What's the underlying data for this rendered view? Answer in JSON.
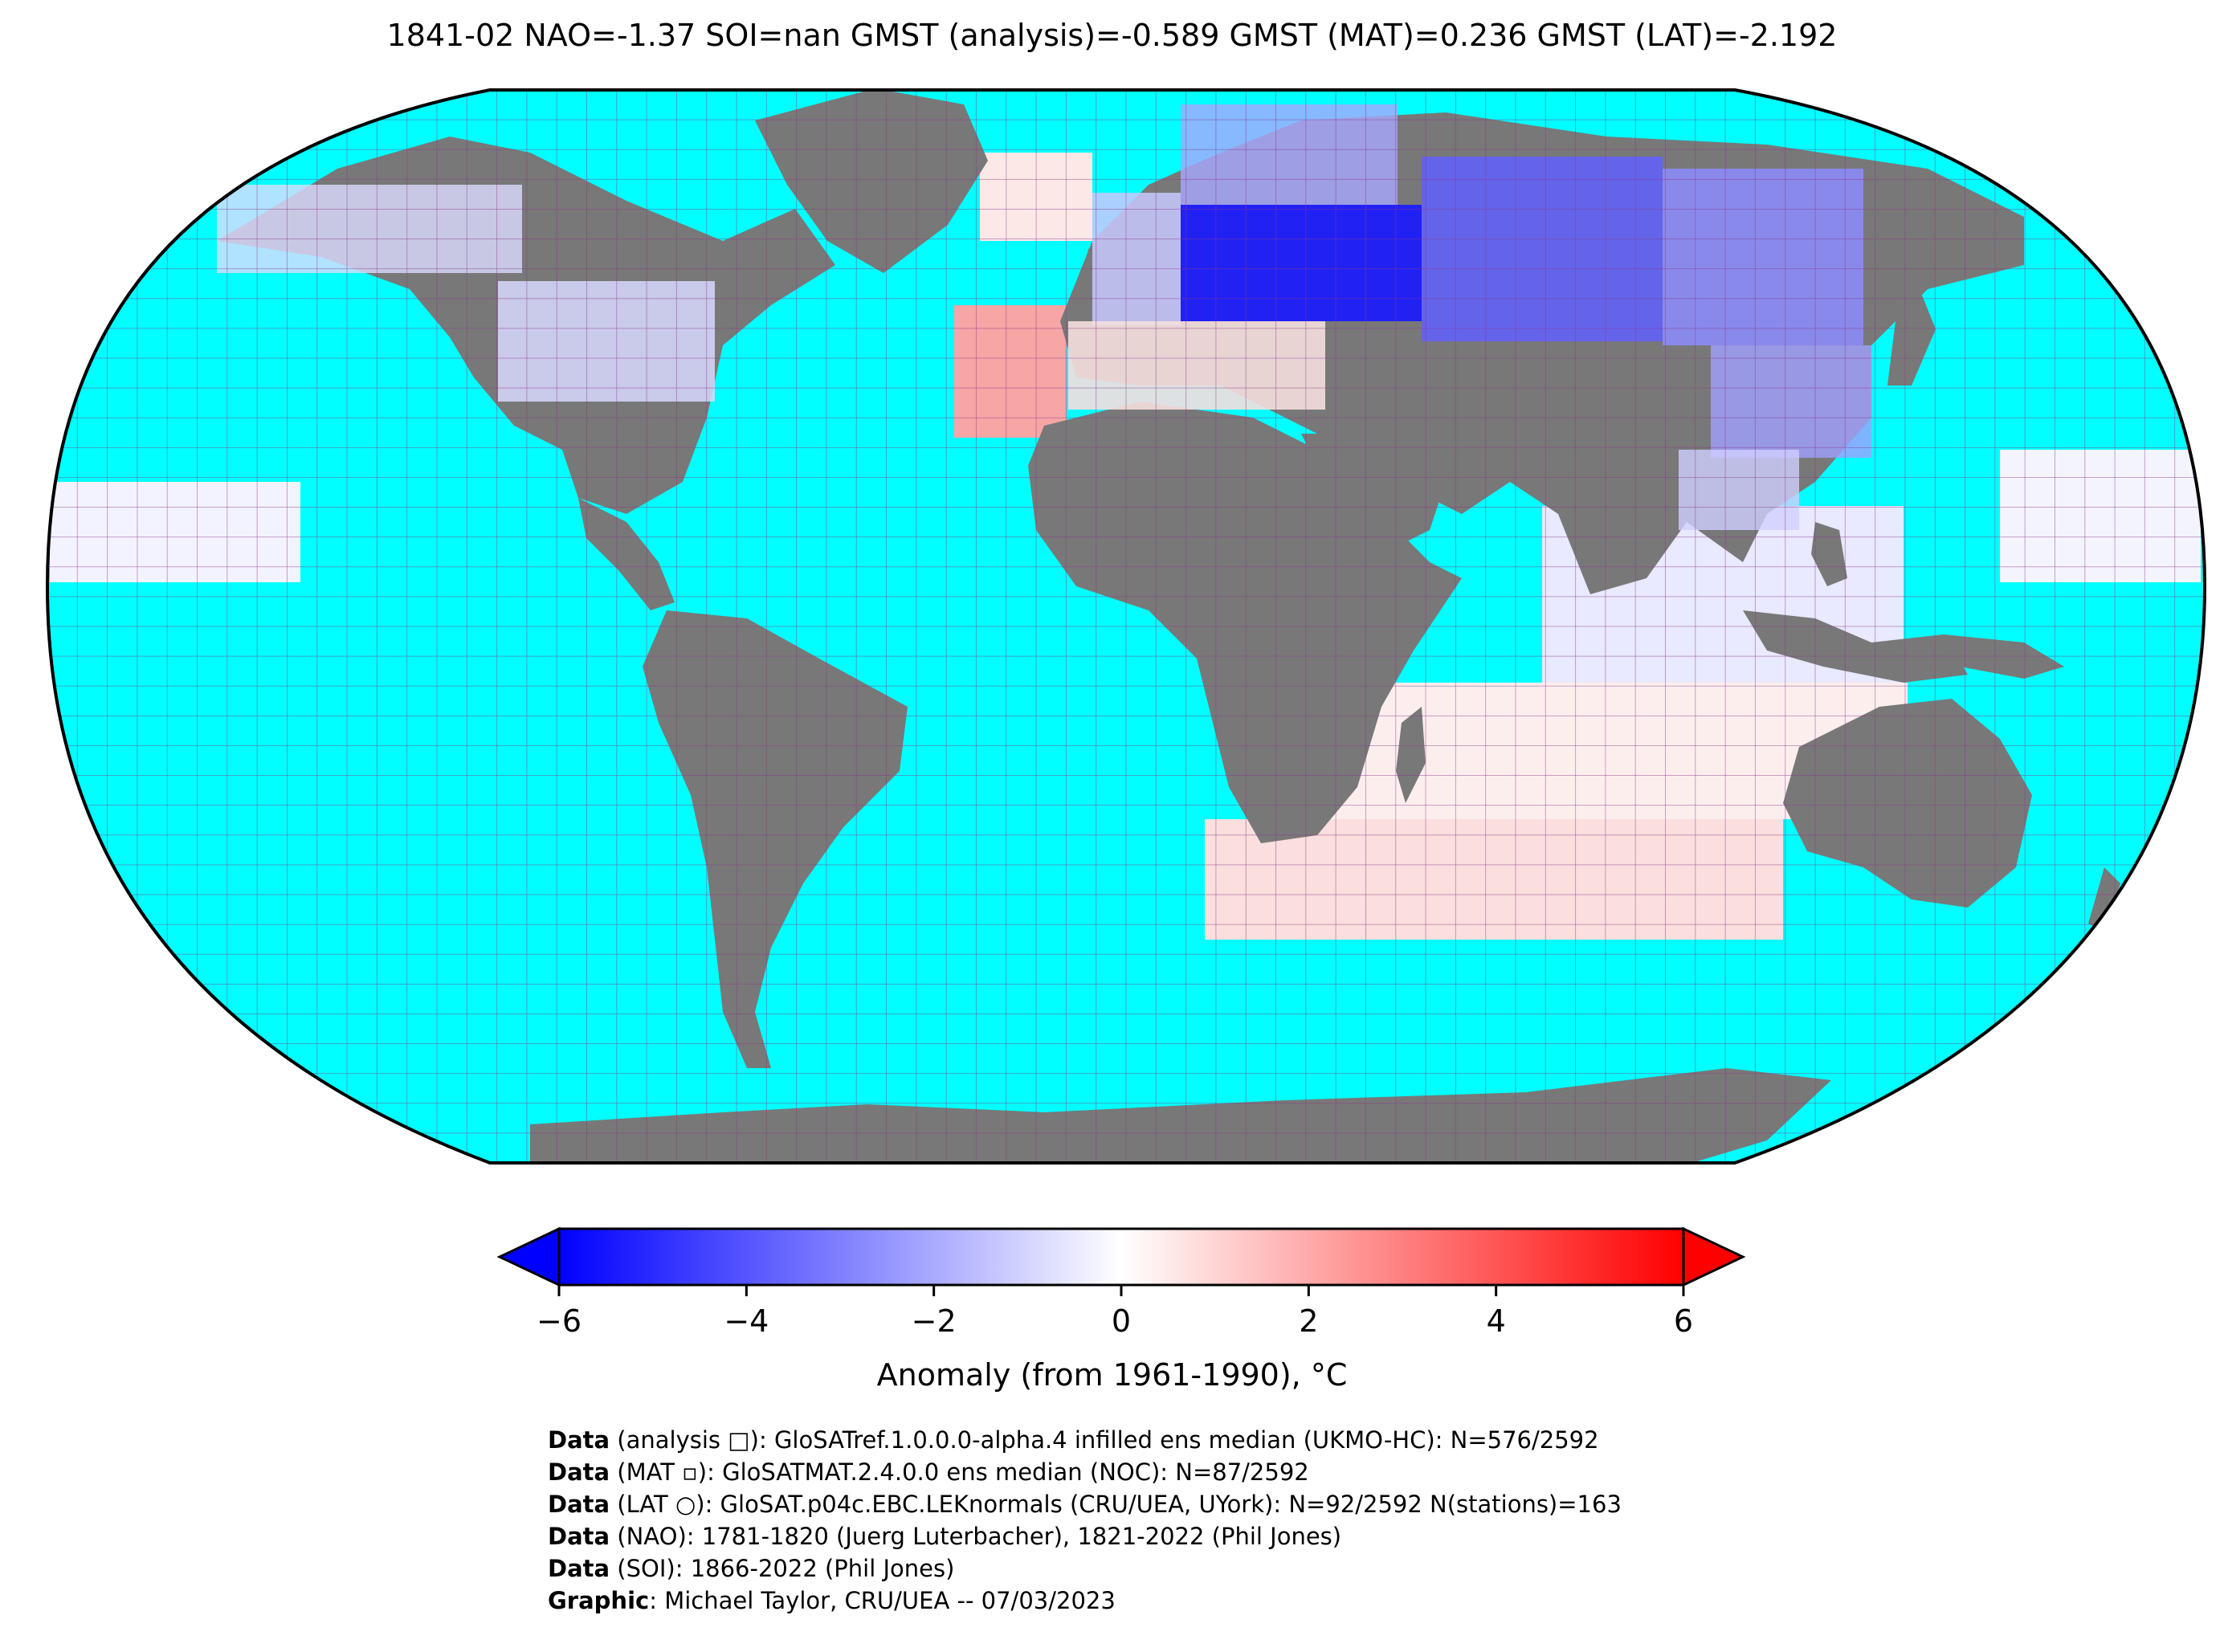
{
  "title": "1841-02 NAO=-1.37 SOI=nan GMST (analysis)=-0.589 GMST (MAT)=0.236 GMST (LAT)=-2.192",
  "colors": {
    "ocean": "#00ffff",
    "land": "#787878",
    "grid": "#8a3a8a",
    "cold": "#0000ff",
    "neutral": "#ffffff",
    "warm": "#ff0000"
  },
  "colorbar": {
    "min": -6,
    "max": 6,
    "ticks": [
      "−6",
      "−4",
      "−2",
      "0",
      "2",
      "4",
      "6"
    ],
    "label": "Anomaly (from 1961-1990), °C"
  },
  "credits": [
    {
      "bold": "Data",
      "text": " (analysis □): GloSATref.1.0.0.0-alpha.4 infilled ens median (UKMO-HC): N=576/2592"
    },
    {
      "bold": "Data",
      "text": " (MAT ▫): GloSATMAT.2.4.0.0 ens median (NOC): N=87/2592"
    },
    {
      "bold": "Data",
      "text": " (LAT ○): GloSAT.p04c.EBC.LEKnormals (CRU/UEA, UYork): N=92/2592 N(stations)=163"
    },
    {
      "bold": "Data",
      "text": " (NAO): 1781-1820 (Juerg Luterbacher), 1821-2022 (Phil Jones)"
    },
    {
      "bold": "Data",
      "text": " (SOI): 1866-2022 (Phil Jones)"
    },
    {
      "bold": "Graphic",
      "text": ": Michael Taylor, CRU/UEA -- 07/03/2023"
    }
  ],
  "anomaly_regions": [
    {
      "name": "siberia-core",
      "anomaly": -4.5
    },
    {
      "name": "siberia-east",
      "anomaly": -2.5
    },
    {
      "name": "east-asia",
      "anomaly": -1.5
    },
    {
      "name": "north-america",
      "anomaly": -1.0
    },
    {
      "name": "greenland",
      "anomaly": 0.5
    },
    {
      "name": "north-atlantic",
      "anomaly": 2.0
    },
    {
      "name": "mediterranean",
      "anomaly": 0.5
    },
    {
      "name": "indian-ocean",
      "anomaly": -0.5
    },
    {
      "name": "southern-indian-ocean",
      "anomaly": 1.0
    },
    {
      "name": "central-pacific",
      "anomaly": 0.3
    },
    {
      "name": "west-pacific",
      "anomaly": 0.2
    }
  ]
}
